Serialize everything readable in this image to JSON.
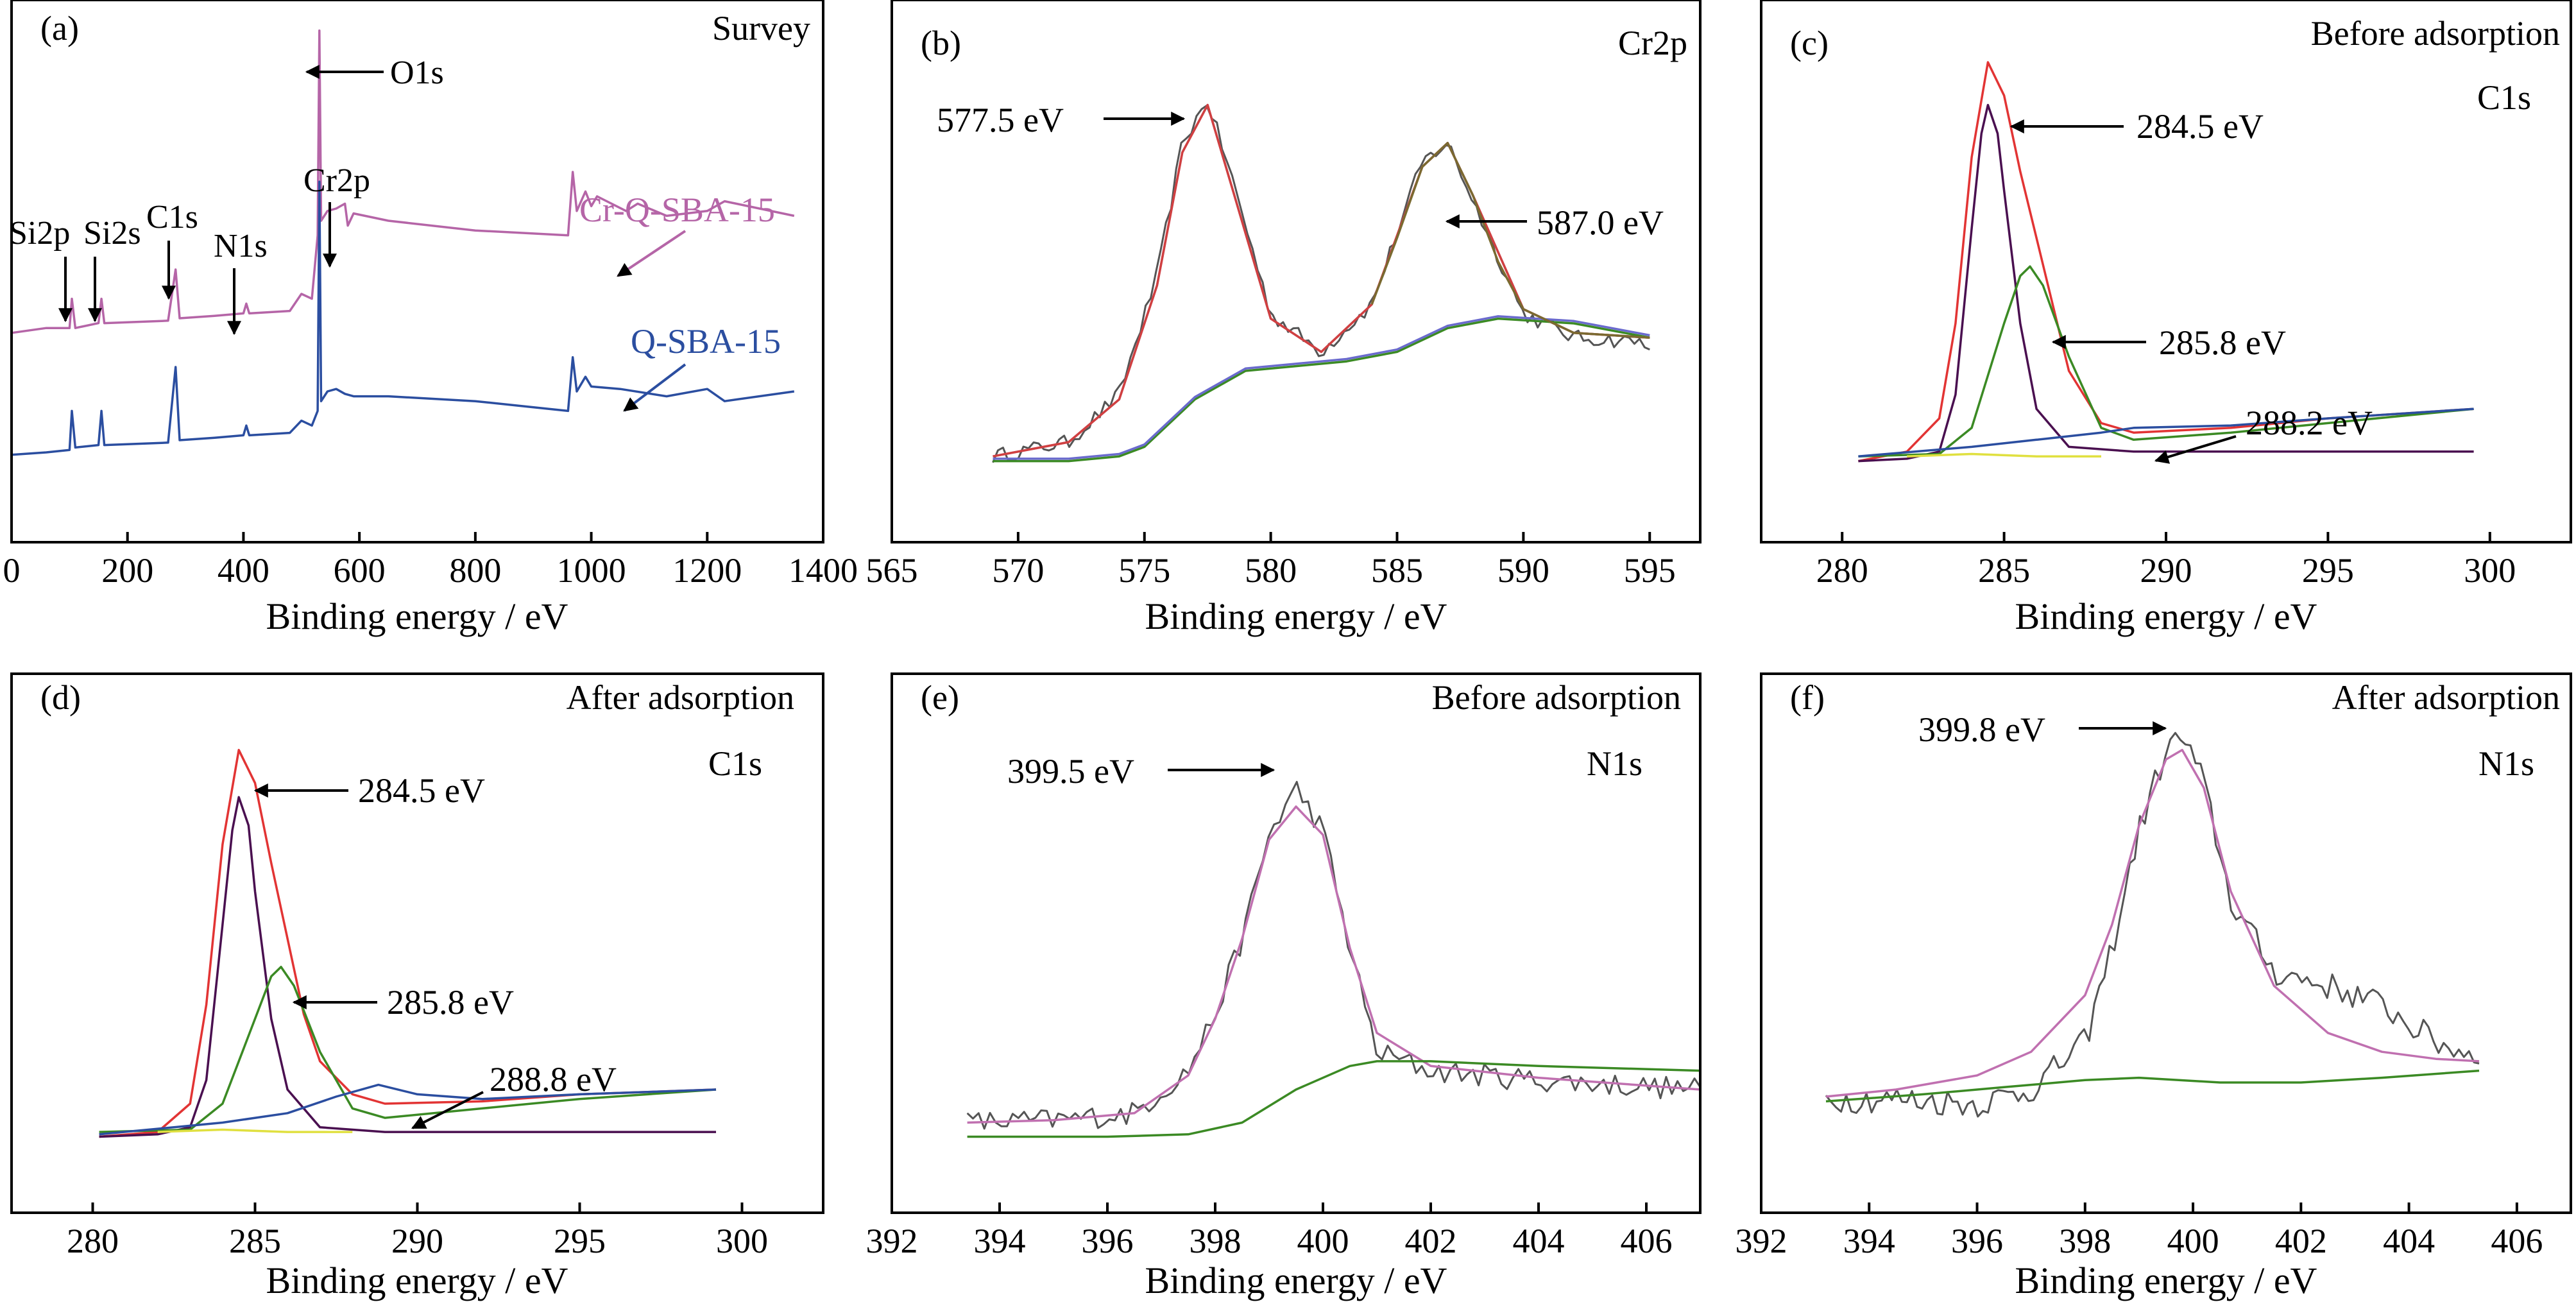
{
  "figure": {
    "background": "#ffffff",
    "axis_color": "#000000"
  },
  "chart_data": [
    {
      "id": "a",
      "type": "line",
      "panel_label": "(a)",
      "title": "Survey",
      "xlabel": "Binding energy / eV",
      "ylabel": "",
      "xlim": [
        0,
        1400
      ],
      "ylim": [
        0,
        100
      ],
      "xticks": [
        0,
        200,
        400,
        600,
        800,
        1000,
        1200,
        1400
      ],
      "xticklabels": [
        "0",
        "200",
        "400",
        "600",
        "800",
        "1000",
        "1200",
        "1400"
      ],
      "series": [
        {
          "name": "Cr-Q-SBA-15",
          "color": "#b565a7",
          "x": [
            0,
            60,
            100,
            104,
            110,
            150,
            155,
            160,
            270,
            283,
            290,
            350,
            400,
            405,
            410,
            480,
            500,
            518,
            528,
            531,
            534,
            545,
            560,
            575,
            580,
            590,
            650,
            800,
            960,
            968,
            975,
            990,
            1000,
            1010,
            1060,
            1080,
            1130,
            1200,
            1230,
            1350
          ],
          "y": [
            37,
            38,
            38,
            44,
            38,
            39,
            44,
            39,
            39.5,
            50,
            40,
            40.5,
            41,
            43,
            41,
            41.5,
            45,
            44,
            57,
            99,
            60,
            62,
            62.5,
            63.5,
            59,
            61.5,
            60,
            58,
            57,
            70,
            62,
            66,
            63,
            65,
            62,
            63.5,
            61,
            62,
            64,
            61
          ]
        },
        {
          "name": "Q-SBA-15",
          "color": "#2b4ea0",
          "x": [
            0,
            60,
            100,
            104,
            110,
            150,
            155,
            160,
            270,
            283,
            290,
            350,
            400,
            405,
            410,
            480,
            500,
            518,
            528,
            531,
            534,
            545,
            560,
            575,
            590,
            650,
            800,
            960,
            968,
            975,
            990,
            1000,
            1050,
            1130,
            1200,
            1230,
            1350
          ],
          "y": [
            12,
            12.5,
            13,
            21,
            13.5,
            14,
            21,
            14,
            14.5,
            30,
            15,
            15.5,
            16,
            18,
            16,
            16.5,
            19,
            18,
            21,
            68,
            23,
            25,
            25.5,
            24.5,
            24,
            24,
            23,
            21,
            32,
            25,
            28,
            26,
            25.5,
            24,
            25.5,
            23,
            25
          ]
        }
      ],
      "annotations": [
        {
          "text": "O1s"
        },
        {
          "text": "Cr2p"
        },
        {
          "text": "Si2p"
        },
        {
          "text": "Si2s"
        },
        {
          "text": "C1s"
        },
        {
          "text": "N1s"
        },
        {
          "text": "Cr-Q-SBA-15"
        },
        {
          "text": "Q-SBA-15"
        }
      ]
    },
    {
      "id": "b",
      "type": "line",
      "panel_label": "(b)",
      "title": "Cr2p",
      "xlabel": "Binding energy / eV",
      "ylabel": "",
      "xlim": [
        565,
        597
      ],
      "ylim": [
        0,
        100
      ],
      "xticks": [
        565,
        570,
        575,
        580,
        585,
        590,
        595
      ],
      "xticklabels": [
        "565",
        "570",
        "575",
        "580",
        "585",
        "590",
        "595"
      ],
      "series": [
        {
          "name": "",
          "color": "#555555",
          "noise": 1.6,
          "x": [
            569,
            572,
            574,
            575.5,
            576.5,
            577.5,
            578.5,
            580,
            582,
            584,
            586,
            587,
            588,
            590,
            592,
            595
          ],
          "y": [
            12,
            15,
            25,
            50,
            78,
            87,
            70,
            42,
            34,
            44,
            74,
            78,
            66,
            42,
            37,
            36
          ]
        },
        {
          "name": "",
          "color": "#c070b0",
          "x": [
            569,
            572,
            574,
            575.5,
            576.5,
            577.5,
            578.5,
            580,
            582,
            584,
            586,
            587,
            588,
            590,
            592,
            595
          ],
          "y": [
            12,
            15,
            24,
            48,
            76,
            86,
            68,
            41,
            34,
            44,
            73,
            78,
            67,
            43,
            38,
            37
          ]
        },
        {
          "name": "",
          "color": "#d04040",
          "x": [
            569,
            572,
            574,
            575.5,
            576.5,
            577.5,
            578.5,
            580,
            582,
            584,
            586,
            587,
            588,
            590,
            592,
            595
          ],
          "y": [
            12,
            15,
            24,
            48,
            76,
            86,
            68,
            41,
            34,
            44,
            73,
            78,
            67,
            43,
            38,
            37
          ]
        },
        {
          "name": "",
          "color": "#3b8a24",
          "x": [
            569,
            572,
            574,
            575,
            577,
            579,
            581,
            583,
            585,
            587,
            589,
            592,
            595
          ],
          "y": [
            11,
            11,
            12,
            14,
            24,
            30,
            31,
            32,
            34,
            39,
            41,
            40,
            37
          ]
        },
        {
          "name": "",
          "color": "#6a6acd",
          "x": [
            569,
            572,
            574,
            575,
            577,
            579,
            581,
            583,
            585,
            587,
            589,
            592,
            595
          ],
          "y": [
            11.5,
            11.5,
            12.5,
            14.5,
            24.5,
            30.5,
            31.5,
            32.5,
            34.5,
            39.5,
            41.5,
            40.5,
            37.5
          ]
        },
        {
          "name": "",
          "color": "#7a6a30",
          "x": [
            584,
            585,
            586,
            587,
            588,
            589,
            590,
            592,
            595
          ],
          "y": [
            44,
            58,
            73,
            78,
            67,
            53,
            43,
            38,
            37
          ]
        }
      ],
      "annotations": [
        {
          "text": "577.5 eV"
        },
        {
          "text": "587.0 eV"
        }
      ]
    },
    {
      "id": "c",
      "type": "line",
      "panel_label": "(c)",
      "title": "Before adsorption",
      "subtitle": "C1s",
      "xlabel": "Binding energy / eV",
      "ylabel": "",
      "xlim": [
        277.5,
        302.5
      ],
      "ylim": [
        0,
        100
      ],
      "xticks": [
        280,
        285,
        290,
        295,
        300
      ],
      "xticklabels": [
        "280",
        "285",
        "290",
        "295",
        "300"
      ],
      "series": [
        {
          "name": "",
          "color": "#e23434",
          "x": [
            280.5,
            282,
            283,
            283.5,
            284,
            284.5,
            285,
            285.5,
            286,
            286.5,
            287,
            288,
            289,
            292,
            295,
            299.5
          ],
          "y": [
            11,
            13,
            20,
            40,
            75,
            95,
            88,
            72,
            58,
            44,
            30,
            19,
            17,
            18,
            20,
            22
          ]
        },
        {
          "name": "",
          "color": "#4a1050",
          "x": [
            280.5,
            282,
            283,
            283.5,
            284,
            284.3,
            284.5,
            284.8,
            285,
            285.5,
            286,
            287,
            289,
            299.5
          ],
          "y": [
            11,
            11.5,
            13,
            25,
            60,
            80,
            86,
            80,
            68,
            40,
            22,
            14,
            13,
            13
          ]
        },
        {
          "name": "",
          "color": "#3b8a24",
          "x": [
            280.5,
            283,
            284,
            285,
            285.5,
            285.8,
            286.2,
            287,
            288,
            289,
            292,
            295,
            299.5
          ],
          "y": [
            12,
            12.5,
            18,
            40,
            50,
            52,
            48,
            33,
            18,
            15.5,
            17,
            19,
            22
          ]
        },
        {
          "name": "",
          "color": "#2b4ea0",
          "x": [
            280.5,
            284,
            286,
            288,
            289,
            292,
            295,
            299.5
          ],
          "y": [
            12,
            14,
            15.5,
            17,
            18,
            18.5,
            20,
            22
          ]
        },
        {
          "name": "",
          "color": "#e0e040",
          "x": [
            282,
            284,
            286,
            288
          ],
          "y": [
            12,
            12.5,
            12,
            12
          ]
        }
      ],
      "annotations": [
        {
          "text": "284.5 eV"
        },
        {
          "text": "285.8 eV"
        },
        {
          "text": "288.2 eV"
        }
      ]
    },
    {
      "id": "d",
      "type": "line",
      "panel_label": "(d)",
      "title": "After adsorption",
      "subtitle": "C1s",
      "xlabel": "Binding energy / eV",
      "ylabel": "",
      "xlim": [
        277.5,
        302.5
      ],
      "ylim": [
        0,
        100
      ],
      "xticks": [
        280,
        285,
        290,
        295,
        300
      ],
      "xticklabels": [
        "280",
        "285",
        "290",
        "295",
        "300"
      ],
      "series": [
        {
          "name": "",
          "color": "#e23434",
          "x": [
            280.2,
            282,
            283,
            283.5,
            284,
            284.5,
            285,
            285.5,
            286,
            286.5,
            287,
            288,
            289,
            292,
            295,
            299.2
          ],
          "y": [
            10,
            11,
            17,
            38,
            72,
            92,
            85,
            68,
            52,
            36,
            26,
            19,
            17,
            17.5,
            19,
            20
          ]
        },
        {
          "name": "",
          "color": "#4a1050",
          "x": [
            280.2,
            282,
            283,
            283.5,
            284,
            284.3,
            284.5,
            284.8,
            285,
            285.5,
            286,
            287,
            289,
            299.2
          ],
          "y": [
            10,
            10.5,
            12,
            22,
            55,
            75,
            82,
            76,
            62,
            35,
            20,
            12,
            11,
            11
          ]
        },
        {
          "name": "",
          "color": "#3b8a24",
          "x": [
            280.2,
            283,
            284,
            285,
            285.5,
            285.8,
            286.2,
            287,
            288,
            289,
            292,
            295,
            299.2
          ],
          "y": [
            11,
            11.5,
            17,
            35,
            44,
            46,
            42,
            28,
            16,
            14,
            16,
            18,
            20
          ]
        },
        {
          "name": "",
          "color": "#2b4ea0",
          "x": [
            280.2,
            284,
            286,
            287.5,
            288.8,
            290,
            292,
            295,
            299.2
          ],
          "y": [
            10.5,
            13,
            15,
            18.5,
            21,
            19,
            18,
            19,
            20
          ]
        },
        {
          "name": "",
          "color": "#e0e040",
          "x": [
            282,
            284,
            286,
            288
          ],
          "y": [
            11,
            11.5,
            11,
            11
          ]
        }
      ],
      "annotations": [
        {
          "text": "284.5 eV"
        },
        {
          "text": "285.8 eV"
        },
        {
          "text": "288.8 eV"
        }
      ]
    },
    {
      "id": "e",
      "type": "line",
      "panel_label": "(e)",
      "title": "Before adsorption",
      "subtitle": "N1s",
      "xlabel": "Binding energy / eV",
      "ylabel": "",
      "xlim": [
        392,
        407
      ],
      "ylim": [
        0,
        100
      ],
      "xticks": [
        392,
        394,
        396,
        398,
        400,
        402,
        404,
        406
      ],
      "xticklabels": [
        "392",
        "394",
        "396",
        "398",
        "400",
        "402",
        "404",
        "406"
      ],
      "series": [
        {
          "name": "",
          "color": "#555555",
          "noise": 2.5,
          "x": [
            393.4,
            395,
            396.5,
            397.5,
            398,
            398.5,
            399,
            399.5,
            400,
            400.5,
            401,
            402,
            404,
            407
          ],
          "y": [
            13,
            13.5,
            15,
            24,
            36,
            52,
            74,
            84,
            75,
            50,
            28,
            24,
            22,
            20
          ]
        },
        {
          "name": "",
          "color": "#c070b0",
          "x": [
            393.4,
            395,
            396.5,
            397.5,
            398,
            398.5,
            399,
            399.5,
            400,
            400.5,
            401,
            402,
            404,
            407
          ],
          "y": [
            13,
            13.5,
            15,
            23,
            35,
            52,
            73,
            80,
            74,
            50,
            32,
            25,
            22.5,
            20
          ]
        },
        {
          "name": "",
          "color": "#3b8a24",
          "x": [
            393.4,
            396,
            397.5,
            398.5,
            399.5,
            400.5,
            401,
            402,
            404,
            407
          ],
          "y": [
            10,
            10,
            10.5,
            13,
            20,
            25,
            26,
            26,
            25,
            24
          ]
        }
      ],
      "annotations": [
        {
          "text": "399.5 eV"
        }
      ]
    },
    {
      "id": "f",
      "type": "line",
      "panel_label": "(f)",
      "title": "After adsorption",
      "subtitle": "N1s",
      "xlabel": "Binding energy / eV",
      "ylabel": "",
      "xlim": [
        392,
        407
      ],
      "ylim": [
        0,
        100
      ],
      "xticks": [
        392,
        394,
        396,
        398,
        400,
        402,
        404,
        406
      ],
      "xticklabels": [
        "392",
        "394",
        "396",
        "398",
        "400",
        "402",
        "404",
        "406"
      ],
      "series": [
        {
          "name": "",
          "color": "#555555",
          "noise": 3,
          "x": [
            393.2,
            394.5,
            396,
            397,
            398,
            398.5,
            399,
            399.5,
            399.8,
            400.2,
            400.7,
            401.5,
            402.5,
            403.5,
            404.5,
            405.3
          ],
          "y": [
            18,
            18,
            17,
            20,
            30,
            50,
            75,
            92,
            95,
            85,
            60,
            45,
            42,
            38,
            30,
            27
          ]
        },
        {
          "name": "",
          "color": "#c070b0",
          "x": [
            393.2,
            394.5,
            396,
            397,
            398,
            398.5,
            399,
            399.5,
            399.8,
            400.2,
            400.7,
            401.5,
            402.5,
            403.5,
            404.5,
            405.3
          ],
          "y": [
            18.5,
            20,
            23,
            28,
            40,
            55,
            76,
            90,
            92,
            84,
            62,
            42,
            32,
            28,
            26.5,
            26
          ]
        },
        {
          "name": "",
          "color": "#3b8a24",
          "x": [
            393.2,
            395,
            396.5,
            398,
            399,
            400.5,
            402,
            403.5,
            405.3
          ],
          "y": [
            17.5,
            19,
            20.5,
            22,
            22.5,
            21.5,
            21.5,
            22.5,
            24
          ]
        }
      ],
      "annotations": [
        {
          "text": "399.8 eV"
        }
      ]
    }
  ]
}
